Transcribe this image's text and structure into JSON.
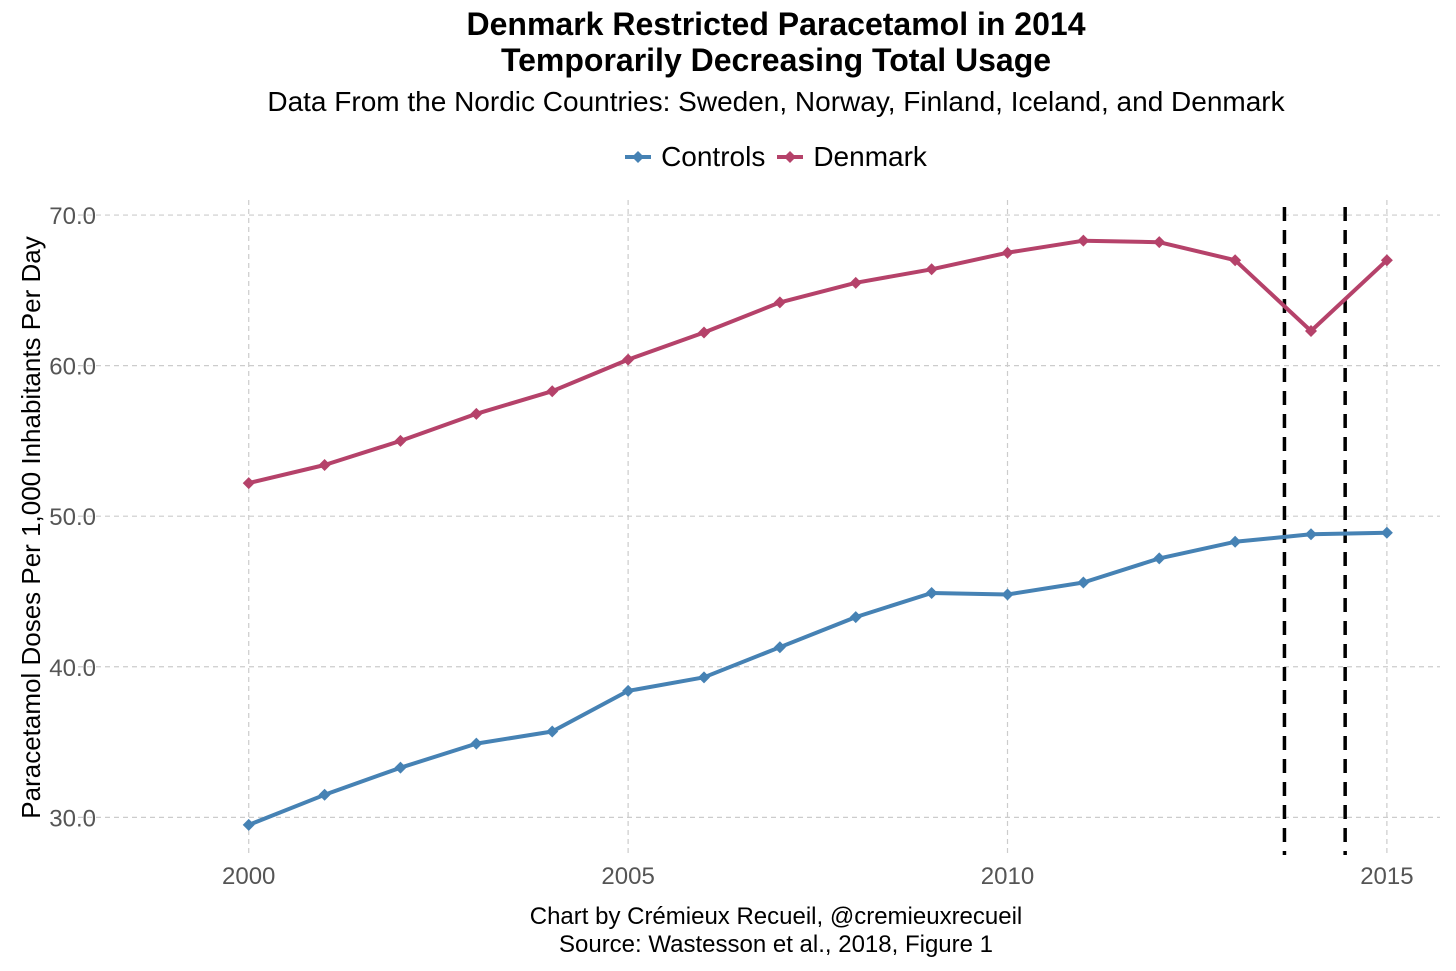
{
  "chart_data": {
    "type": "line",
    "title_line1": "Denmark Restricted Paracetamol in 2014",
    "title_line2": "Temporarily Decreasing Total Usage",
    "subtitle": "Data From the Nordic Countries: Sweden, Norway, Finland, Iceland, and Denmark",
    "xlabel": "",
    "ylabel": "Paracetamol Doses Per 1,000 Inhabitants Per Day",
    "caption_line1": "Chart by Crémieux Recueil, @cremieuxrecueil",
    "caption_line2": "Source: Wastesson et al., 2018, Figure 1",
    "x": [
      2000,
      2001,
      2002,
      2003,
      2004,
      2005,
      2006,
      2007,
      2008,
      2009,
      2010,
      2011,
      2012,
      2013,
      2014,
      2015
    ],
    "series": [
      {
        "name": "Controls",
        "color": "#4682b4",
        "values": [
          29.5,
          31.5,
          33.3,
          34.9,
          35.7,
          38.4,
          39.3,
          41.3,
          43.3,
          44.9,
          44.8,
          45.6,
          47.2,
          48.3,
          48.8,
          48.9
        ]
      },
      {
        "name": "Denmark",
        "color": "#b5426a",
        "values": [
          52.2,
          53.4,
          55.0,
          56.8,
          58.3,
          60.4,
          62.2,
          64.2,
          65.5,
          66.4,
          67.5,
          68.3,
          68.2,
          67.0,
          62.3,
          67.0
        ]
      }
    ],
    "xticks": [
      2000,
      2005,
      2010,
      2015
    ],
    "xtick_labels": [
      "2000",
      "2005",
      "2010",
      "2015"
    ],
    "yticks": [
      30,
      40,
      50,
      60,
      70
    ],
    "ytick_labels": [
      "30.0",
      "40.0",
      "50.0",
      "60.0",
      "70.0"
    ],
    "xlim": [
      1997.75,
      2015.7
    ],
    "ylim": [
      27.5,
      71.0
    ],
    "vlines": [
      2013.65,
      2014.45
    ],
    "vline_color": "#000000",
    "grid": true,
    "legend_position": "top"
  }
}
